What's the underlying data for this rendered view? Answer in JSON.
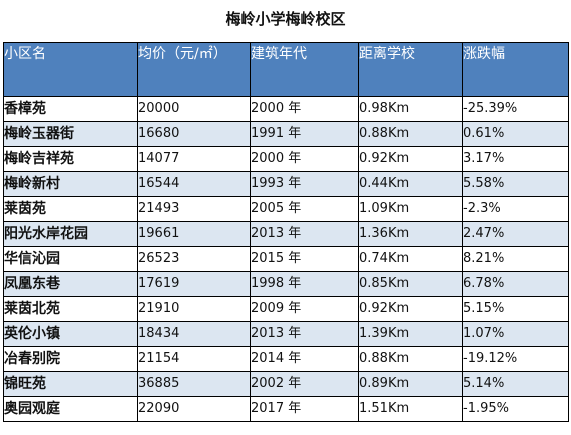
{
  "title": "梅岭小学梅岭校区",
  "columns": {
    "name": "小区名",
    "price": "均价（元/㎡）",
    "year": "建筑年代",
    "distance": "距离学校",
    "change": "涨跌幅"
  },
  "rows": [
    {
      "name": "香樟苑",
      "price": "20000",
      "year": "2000 年",
      "distance": "0.98Km",
      "change": "-25.39%"
    },
    {
      "name": "梅岭玉器街",
      "price": "16680",
      "year": "1991 年",
      "distance": "0.88Km",
      "change": "0.61%"
    },
    {
      "name": "梅岭吉祥苑",
      "price": "14077",
      "year": "2000 年",
      "distance": "0.92Km",
      "change": "3.17%"
    },
    {
      "name": "梅岭新村",
      "price": "16544",
      "year": "1993 年",
      "distance": "0.44Km",
      "change": "5.58%"
    },
    {
      "name": "莱茵苑",
      "price": "21493",
      "year": "2005 年",
      "distance": "1.09Km",
      "change": "-2.3%"
    },
    {
      "name": "阳光水岸花园",
      "price": "19661",
      "year": "2013 年",
      "distance": "1.36Km",
      "change": "2.47%"
    },
    {
      "name": "华信沁园",
      "price": "26523",
      "year": "2015 年",
      "distance": "0.74Km",
      "change": "8.21%"
    },
    {
      "name": "凤凰东巷",
      "price": "17619",
      "year": "1998 年",
      "distance": "0.85Km",
      "change": "6.78%"
    },
    {
      "name": "莱茵北苑",
      "price": "21910",
      "year": "2009 年",
      "distance": "0.92Km",
      "change": "5.15%"
    },
    {
      "name": "英伦小镇",
      "price": "18434",
      "year": "2013 年",
      "distance": "1.39Km",
      "change": "1.07%"
    },
    {
      "name": "冶春别院",
      "price": "21154",
      "year": "2014 年",
      "distance": "0.88Km",
      "change": "-19.12%"
    },
    {
      "name": "锦旺苑",
      "price": "36885",
      "year": "2002 年",
      "distance": "0.89Km",
      "change": "5.14%"
    },
    {
      "name": "奥园观庭",
      "price": "22090",
      "year": "2017 年",
      "distance": "1.51Km",
      "change": "-1.95%"
    }
  ]
}
